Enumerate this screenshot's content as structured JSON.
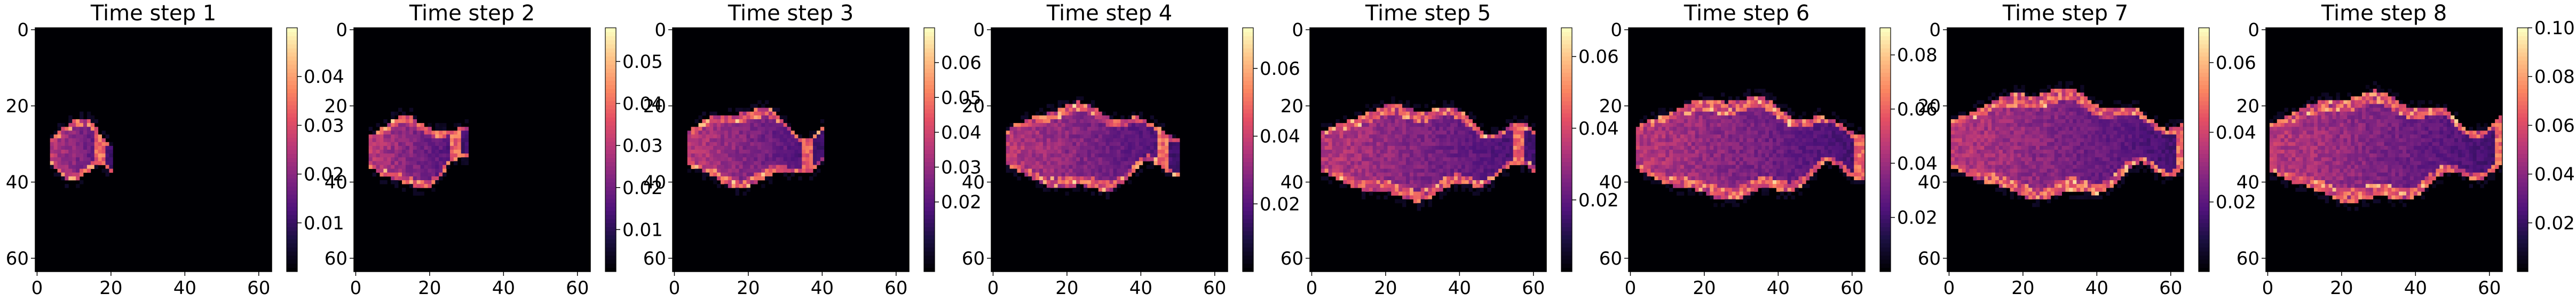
{
  "colormap": "magma",
  "chart_data": [
    {
      "type": "heatmap",
      "title": "Time step 1",
      "xticks": [
        "0",
        "20",
        "40",
        "60"
      ],
      "yticks": [
        "0",
        "20",
        "40",
        "60"
      ],
      "grid_size": 64,
      "colorbar": {
        "min": 0.0,
        "max": 0.05,
        "ticks": [
          "0.01",
          "0.02",
          "0.03",
          "0.04"
        ]
      },
      "plume": {
        "x0": 4,
        "xmax": 20,
        "y_center": 32,
        "half_width_max": 8,
        "peak": 0.048,
        "front": 17
      }
    },
    {
      "type": "heatmap",
      "title": "Time step 2",
      "xticks": [
        "0",
        "20",
        "40",
        "60"
      ],
      "yticks": [
        "0",
        "20",
        "40",
        "60"
      ],
      "grid_size": 64,
      "colorbar": {
        "min": 0.0,
        "max": 0.058,
        "ticks": [
          "0.01",
          "0.02",
          "0.03",
          "0.04",
          "0.05"
        ]
      },
      "plume": {
        "x0": 4,
        "xmax": 30,
        "y_center": 32,
        "half_width_max": 9,
        "peak": 0.056,
        "front": 27
      }
    },
    {
      "type": "heatmap",
      "title": "Time step 3",
      "xticks": [
        "0",
        "20",
        "40",
        "60"
      ],
      "yticks": [
        "0",
        "20",
        "40",
        "60"
      ],
      "grid_size": 64,
      "colorbar": {
        "min": 0.0,
        "max": 0.07,
        "ticks": [
          "0.02",
          "0.03",
          "0.04",
          "0.05",
          "0.06"
        ]
      },
      "plume": {
        "x0": 4,
        "xmax": 40,
        "y_center": 31,
        "half_width_max": 10,
        "peak": 0.068,
        "front": 36
      }
    },
    {
      "type": "heatmap",
      "title": "Time step 4",
      "xticks": [
        "0",
        "20",
        "40",
        "60"
      ],
      "yticks": [
        "0",
        "20",
        "40",
        "60"
      ],
      "grid_size": 64,
      "colorbar": {
        "min": 0.0,
        "max": 0.072,
        "ticks": [
          "0.02",
          "0.04",
          "0.06"
        ]
      },
      "plume": {
        "x0": 4,
        "xmax": 50,
        "y_center": 31,
        "half_width_max": 11,
        "peak": 0.07,
        "front": 46
      }
    },
    {
      "type": "heatmap",
      "title": "Time step 5",
      "xticks": [
        "0",
        "20",
        "40",
        "60"
      ],
      "yticks": [
        "0",
        "20",
        "40",
        "60"
      ],
      "grid_size": 64,
      "colorbar": {
        "min": 0.0,
        "max": 0.068,
        "ticks": [
          "0.02",
          "0.04",
          "0.06"
        ]
      },
      "plume": {
        "x0": 3,
        "xmax": 60,
        "y_center": 32,
        "half_width_max": 12,
        "peak": 0.066,
        "front": 56
      }
    },
    {
      "type": "heatmap",
      "title": "Time step 6",
      "xticks": [
        "0",
        "20",
        "40",
        "60"
      ],
      "yticks": [
        "0",
        "20",
        "40",
        "60"
      ],
      "grid_size": 64,
      "colorbar": {
        "min": 0.0,
        "max": 0.09,
        "ticks": [
          "0.02",
          "0.04",
          "0.06",
          "0.08"
        ]
      },
      "plume": {
        "x0": 2,
        "xmax": 63,
        "y_center": 31,
        "half_width_max": 13,
        "peak": 0.088,
        "front": 62
      }
    },
    {
      "type": "heatmap",
      "title": "Time step 7",
      "xticks": [
        "0",
        "20",
        "40",
        "60"
      ],
      "yticks": [
        "0",
        "20",
        "40",
        "60"
      ],
      "grid_size": 64,
      "colorbar": {
        "min": 0.0,
        "max": 0.07,
        "ticks": [
          "0.02",
          "0.04",
          "0.06"
        ]
      },
      "plume": {
        "x0": 1,
        "xmax": 63,
        "y_center": 30,
        "half_width_max": 14,
        "peak": 0.068,
        "front": 63
      }
    },
    {
      "type": "heatmap",
      "title": "Time step 8",
      "xticks": [
        "0",
        "20",
        "40",
        "60"
      ],
      "yticks": [
        "0",
        "20",
        "40",
        "60"
      ],
      "grid_size": 64,
      "colorbar": {
        "min": 0.0,
        "max": 0.1,
        "ticks": [
          "0.02",
          "0.04",
          "0.06",
          "0.08",
          "0.10"
        ]
      },
      "plume": {
        "x0": 1,
        "xmax": 63,
        "y_center": 31,
        "half_width_max": 14,
        "peak": 0.098,
        "front": 63
      }
    }
  ]
}
